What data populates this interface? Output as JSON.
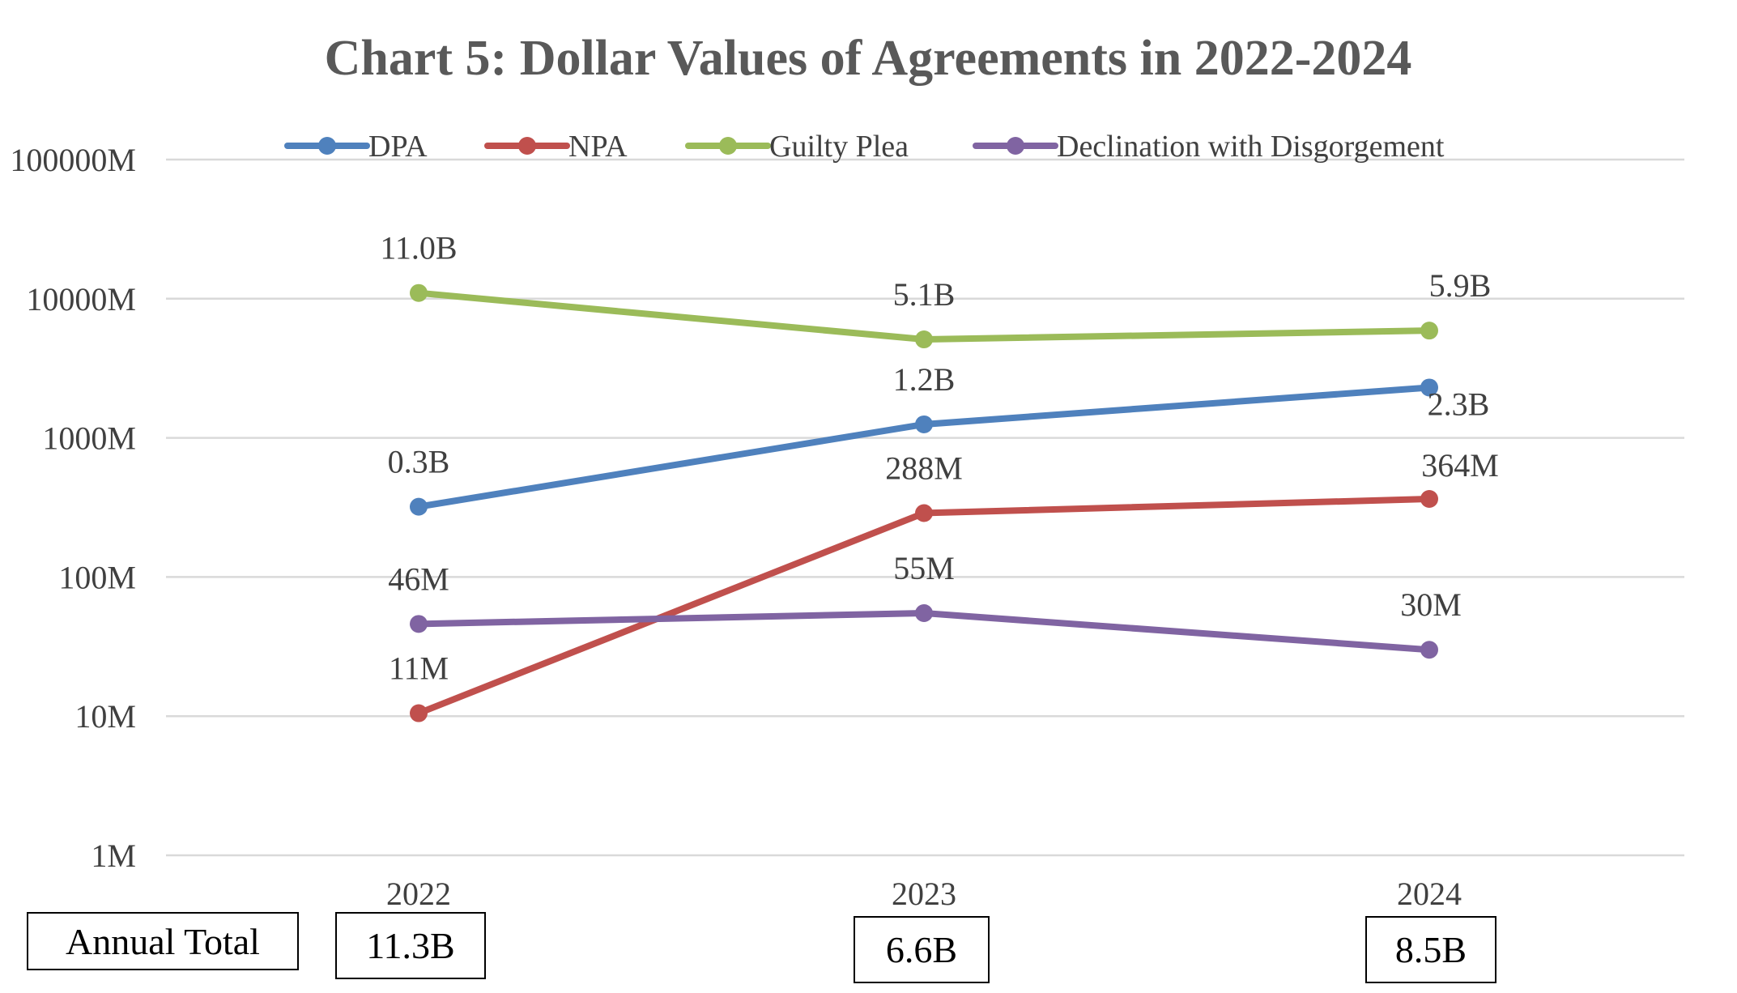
{
  "chart_data": {
    "type": "line",
    "title": "Chart 5: Dollar Values of Agreements in 2022-2024",
    "y_scale": "log",
    "ylim": [
      1,
      100000
    ],
    "y_ticks": [
      {
        "value": 1,
        "label": "1M"
      },
      {
        "value": 10,
        "label": "10M"
      },
      {
        "value": 100,
        "label": "100M"
      },
      {
        "value": 1000,
        "label": "1000M"
      },
      {
        "value": 10000,
        "label": "10000M"
      },
      {
        "value": 100000,
        "label": "100000M"
      }
    ],
    "categories": [
      "2022",
      "2023",
      "2024"
    ],
    "legend_position": "top",
    "series": [
      {
        "name": "DPA",
        "color": "#4F81BD",
        "values": [
          320,
          1250,
          2300
        ],
        "labels": [
          "0.3B",
          "1.2B",
          "2.3B"
        ]
      },
      {
        "name": "NPA",
        "color": "#C0504D",
        "values": [
          10.5,
          288,
          364
        ],
        "labels": [
          "11M",
          "288M",
          "364M"
        ]
      },
      {
        "name": "Guilty Plea",
        "color": "#9BBB59",
        "values": [
          11000,
          5100,
          5900
        ],
        "labels": [
          "11.0B",
          "5.1B",
          "5.9B"
        ]
      },
      {
        "name": "Declination with Disgorgement",
        "color": "#8064A2",
        "values": [
          46,
          55,
          30
        ],
        "labels": [
          "46M",
          "55M",
          "30M"
        ]
      }
    ]
  },
  "annual_total": {
    "label": "Annual Total",
    "values": [
      "11.3B",
      "6.6B",
      "8.5B"
    ]
  }
}
